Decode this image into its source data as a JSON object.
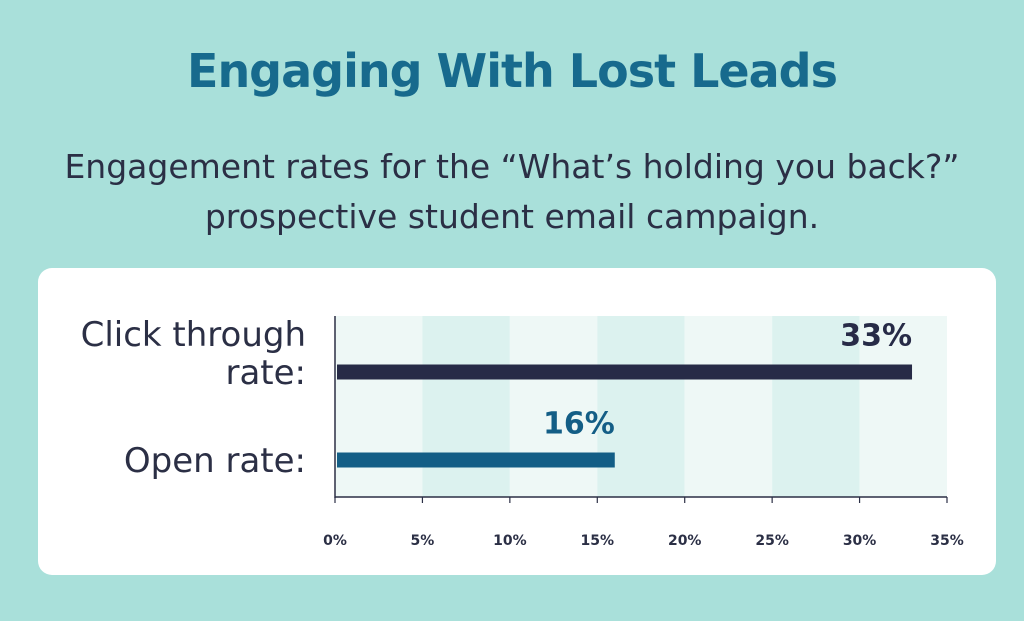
{
  "header": {
    "title": "Engaging With Lost Leads",
    "subtitle": "Engagement rates for the “What’s holding you back?” prospective student email campaign."
  },
  "colors": {
    "background": "#a9e0da",
    "title": "#176a8d",
    "text": "#2b2f45",
    "band_light": "#eef8f6",
    "band_dark": "#dcf2ef"
  },
  "chart_data": {
    "type": "bar",
    "orientation": "horizontal",
    "title": "Engaging With Lost Leads",
    "subtitle": "Engagement rates for the “What’s holding you back?” prospective student email campaign.",
    "categories": [
      {
        "label_lines": [
          "Click through",
          "rate:"
        ],
        "value": 33,
        "data_label": "33%",
        "color": "#272b47"
      },
      {
        "label_lines": [
          "Open rate:"
        ],
        "value": 16,
        "data_label": "16%",
        "color": "#135e86"
      }
    ],
    "xlim": [
      0,
      35
    ],
    "xticks": [
      "0%",
      "5%",
      "10%",
      "15%",
      "20%",
      "25%",
      "30%",
      "35%"
    ],
    "xtick_values": [
      0,
      5,
      10,
      15,
      20,
      25,
      30,
      35
    ],
    "unit": "%",
    "grid": "alternating vertical bands",
    "legend": "none"
  }
}
